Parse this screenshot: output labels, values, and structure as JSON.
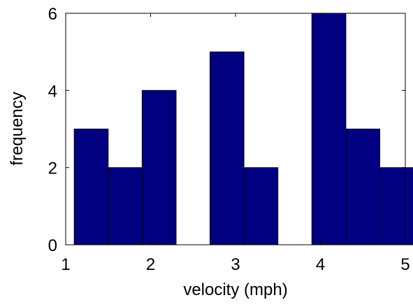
{
  "chart_data": {
    "type": "bar",
    "xlabel": "velocity (mph)",
    "ylabel": "frequency",
    "xlim": [
      1,
      5
    ],
    "ylim": [
      0,
      6
    ],
    "xticks": [
      "1",
      "2",
      "3",
      "4",
      "5"
    ],
    "yticks": [
      "0",
      "2",
      "4",
      "6"
    ],
    "bar_width": 0.4,
    "bins": [
      {
        "center": 1.3,
        "value": 3
      },
      {
        "center": 1.7,
        "value": 2
      },
      {
        "center": 2.1,
        "value": 4
      },
      {
        "center": 2.5,
        "value": 0
      },
      {
        "center": 2.9,
        "value": 5
      },
      {
        "center": 3.3,
        "value": 2
      },
      {
        "center": 3.7,
        "value": 0
      },
      {
        "center": 4.1,
        "value": 6
      },
      {
        "center": 4.5,
        "value": 3
      },
      {
        "center": 4.9,
        "value": 2
      }
    ],
    "grid": false,
    "colors": {
      "bar_fill": "#000080",
      "bar_edge": "#000000",
      "axis": "#000000"
    }
  }
}
